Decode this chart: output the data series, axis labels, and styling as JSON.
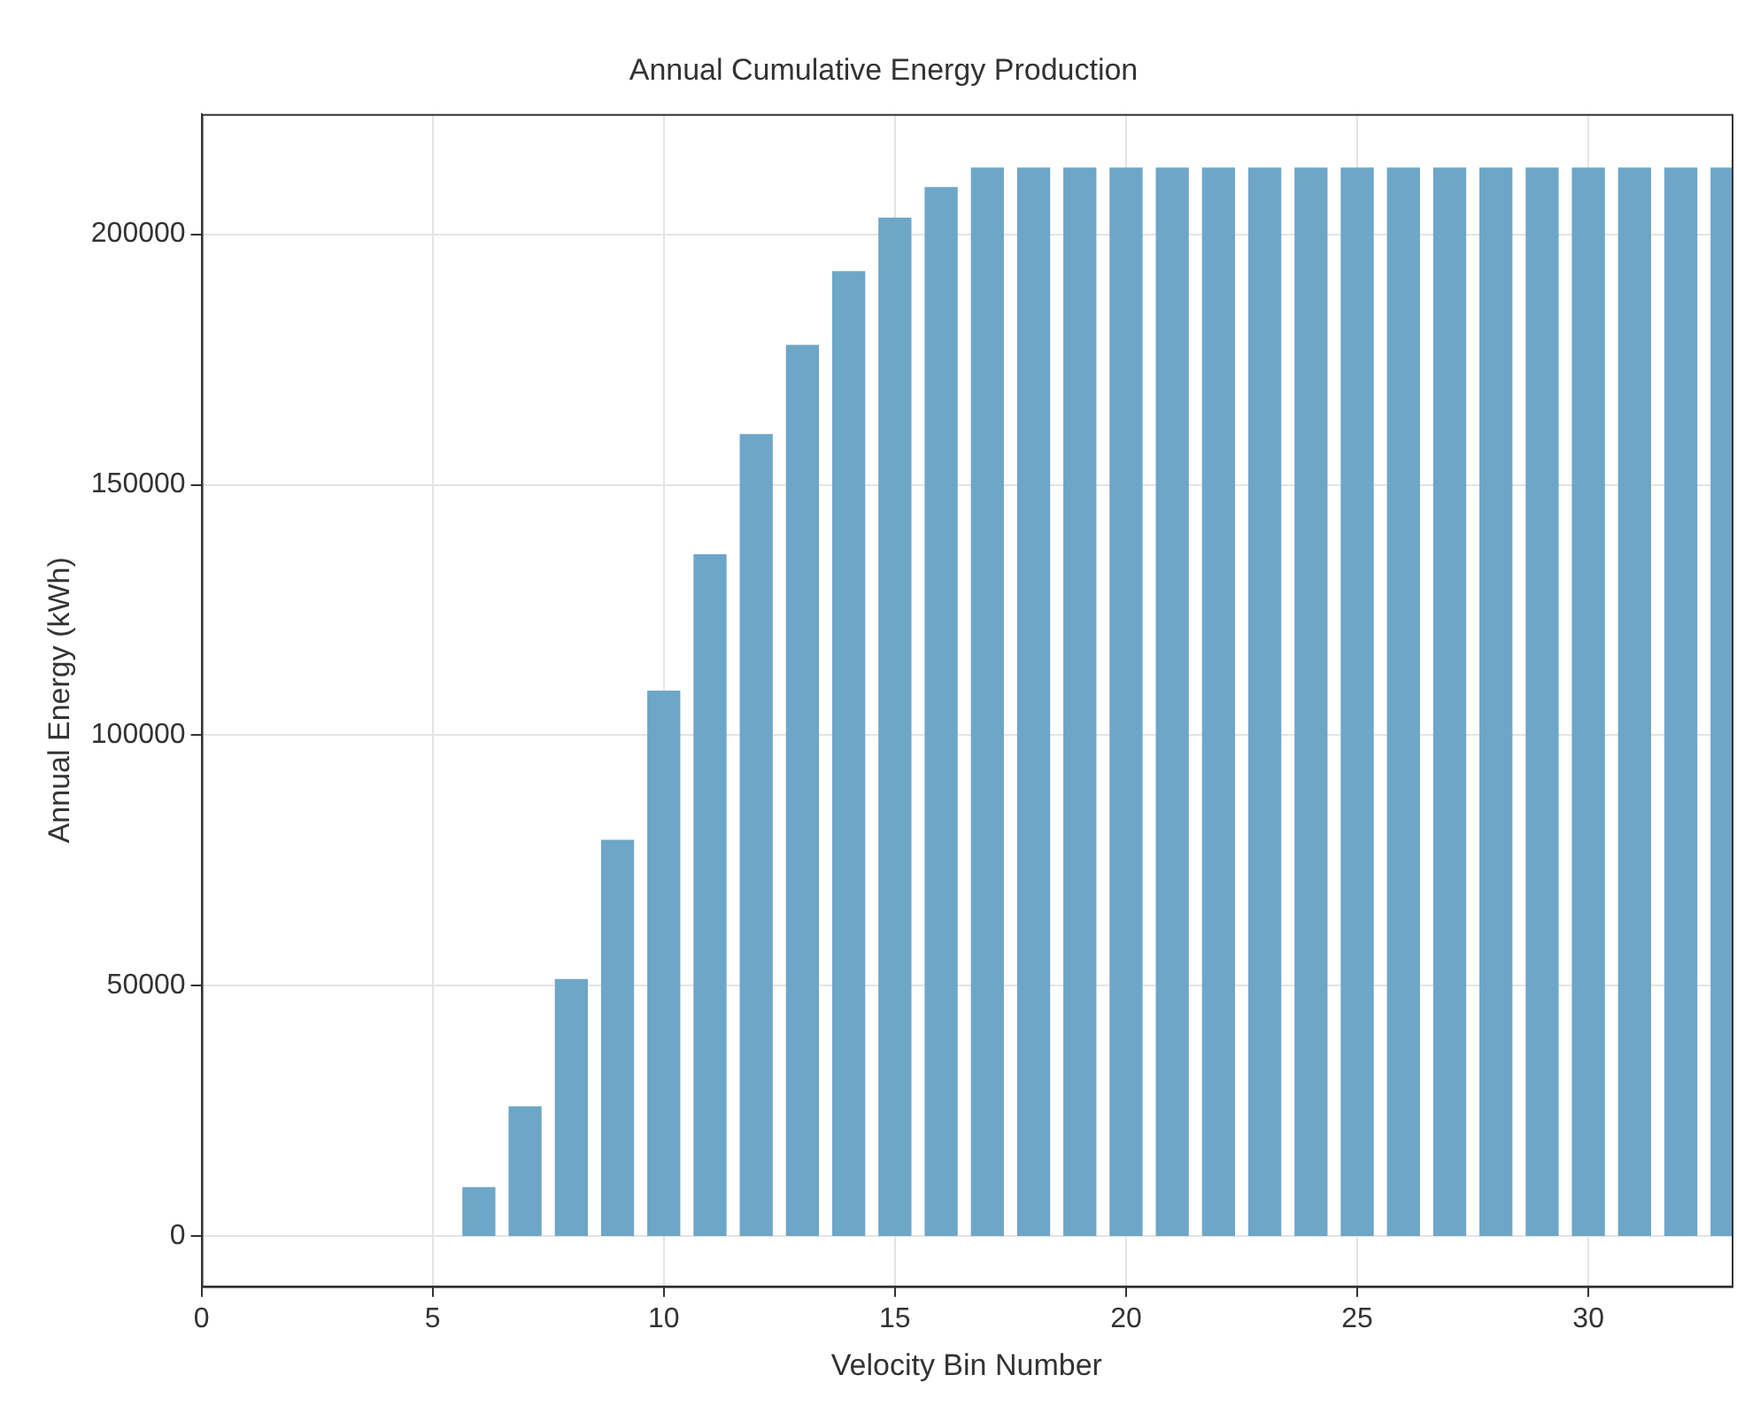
{
  "chart_data": {
    "type": "bar",
    "title": "Annual Cumulative Energy Production",
    "xlabel": "Velocity Bin Number",
    "ylabel": "Annual Energy (kWh)",
    "x": [
      6,
      7,
      8,
      9,
      10,
      11,
      12,
      13,
      14,
      15,
      16,
      17,
      18,
      19,
      20,
      21,
      22,
      23,
      24,
      25,
      26,
      27,
      28,
      29,
      30,
      31,
      32,
      33
    ],
    "values": [
      9700,
      25800,
      51200,
      79000,
      108800,
      136000,
      160000,
      177800,
      192500,
      203200,
      209300,
      213200,
      213200,
      213200,
      213200,
      213200,
      213200,
      213200,
      213200,
      213200,
      213200,
      213200,
      213200,
      213200,
      213200,
      213200,
      213200,
      213200
    ],
    "color": "#6ea6c8",
    "xlim": [
      0,
      33.1
    ],
    "xticks": [
      0,
      5,
      10,
      15,
      20,
      25,
      30
    ],
    "ylim": [
      -10000,
      224000
    ],
    "yticks": [
      0,
      50000,
      100000,
      150000,
      200000
    ],
    "grid": true
  }
}
